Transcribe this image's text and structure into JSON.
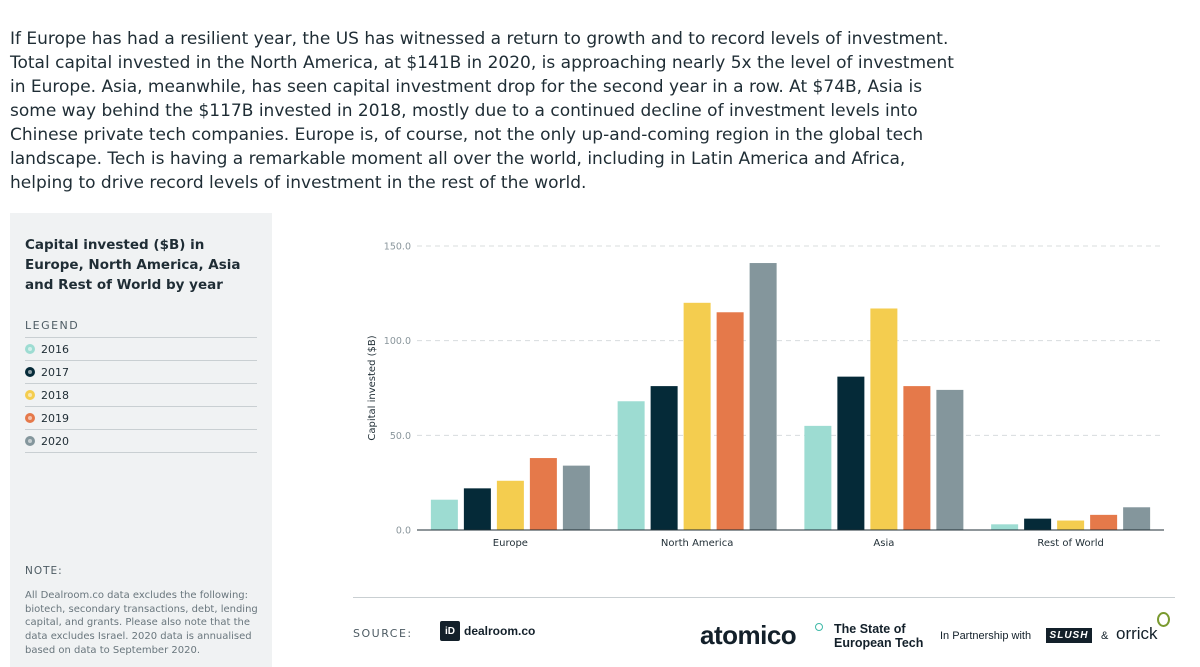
{
  "intro": "If Europe has had a resilient year, the US has witnessed a return to growth and to record levels of investment. Total capital invested in the North America, at $141B in 2020, is approaching nearly 5x the level of investment in Europe. Asia, meanwhile, has seen capital investment drop for the second year in a row. At $74B, Asia is some way behind the $117B invested in 2018, mostly due to a continued decline of investment levels into Chinese private tech companies. Europe is, of course, not the only up-and-coming region in the global tech landscape. Tech is having a remarkable moment all over the world, including in Latin America and Africa, helping to drive record levels of investment in the rest of the world.",
  "sidebar": {
    "title": "Capital invested ($B) in Europe, North America, Asia and Rest of World by year",
    "legend_label": "LEGEND",
    "note_label": "NOTE:",
    "note_text": "All Dealroom.co data excludes the following: biotech, secondary transactions, debt, lending capital, and grants. Please also note that the data excludes Israel. 2020 data is annualised based on data to September 2020."
  },
  "chart_data": {
    "type": "bar",
    "categories": [
      "Europe",
      "North America",
      "Asia",
      "Rest of World"
    ],
    "series": [
      {
        "name": "2016",
        "color": "#9ddcd2",
        "values": [
          16,
          68,
          55,
          3
        ]
      },
      {
        "name": "2017",
        "color": "#052a38",
        "values": [
          22,
          76,
          81,
          6
        ]
      },
      {
        "name": "2018",
        "color": "#f4cd4f",
        "values": [
          26,
          120,
          117,
          5
        ]
      },
      {
        "name": "2019",
        "color": "#e5794a",
        "values": [
          38,
          115,
          76,
          8
        ]
      },
      {
        "name": "2020",
        "color": "#84969c",
        "values": [
          34,
          141,
          74,
          12
        ]
      }
    ],
    "ylabel": "Capital invested ($B)",
    "ylim": [
      0,
      150
    ],
    "yticks": [
      "0.0",
      "50.0",
      "100.0",
      "150.0"
    ],
    "grid": true
  },
  "footer": {
    "source_label": "SOURCE:",
    "dealroom_text": "dealroom.co",
    "dealroom_mark": "iD",
    "atomico": "atomico",
    "report_title": "The State of European Tech",
    "partner_label": "In Partnership with",
    "slush": "SLUSH",
    "amp": "&",
    "orrick": "orrick"
  }
}
